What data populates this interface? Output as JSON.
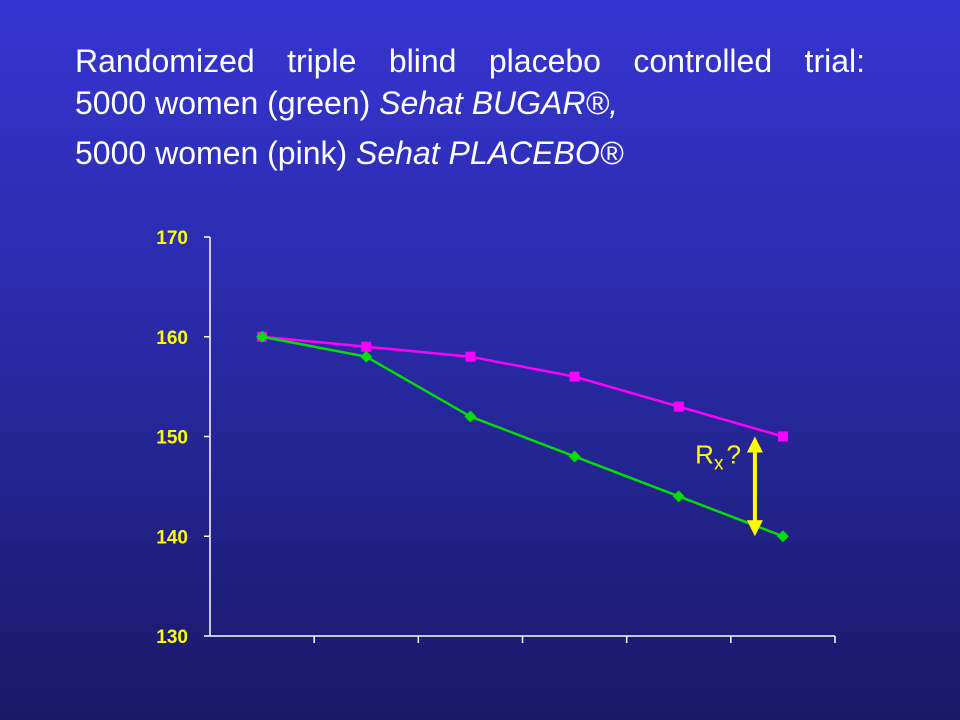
{
  "title": {
    "line1": "Randomized triple blind placebo controlled trial:",
    "line2_prefix": "5000 women (green) ",
    "line2_italic": "Sehat BUGAR®,",
    "line3_prefix": "5000 women (pink) ",
    "line3_italic": "Sehat PLACEBO®"
  },
  "chart_data": {
    "type": "line",
    "x": [
      1,
      2,
      3,
      4,
      5,
      6
    ],
    "ylim": [
      130,
      170
    ],
    "yticks": [
      130,
      140,
      150,
      160,
      170
    ],
    "grid": false,
    "series": [
      {
        "values": [
          160,
          159,
          158,
          156,
          153,
          150
        ],
        "color": "#ff00ff",
        "marker": "square"
      },
      {
        "values": [
          160,
          158,
          152,
          148,
          144,
          140
        ],
        "color": "#00dd00",
        "marker": "diamond"
      }
    ],
    "annotation": {
      "label_main": "R",
      "label_sub": "x",
      "label_suffix": "?",
      "arrow_color": "#ffff00",
      "arrow_x": 6,
      "arrow_from": 150,
      "arrow_to": 140
    },
    "axis_color": "#ffffff",
    "tick_label_color": "#ffff00"
  }
}
